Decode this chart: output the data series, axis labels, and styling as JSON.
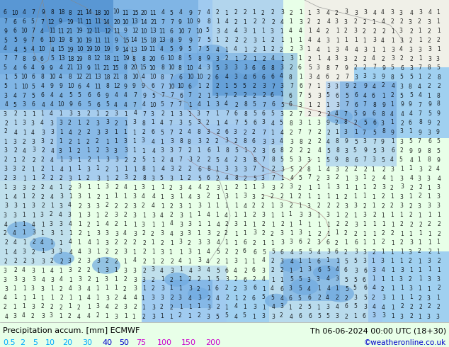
{
  "title_left": "Precipitation accum. [mm] ECMWF",
  "title_right": "Th 06-06-2024 00:00 UTC (18+30)",
  "credit": "©weatheronline.co.uk",
  "legend_values": [
    "0.5",
    "2",
    "5",
    "10",
    "20",
    "30",
    "40",
    "50",
    "75",
    "100",
    "150",
    "200"
  ],
  "legend_text_colors": [
    "#00aaff",
    "#00aaff",
    "#00aaff",
    "#00aaff",
    "#00aaff",
    "#00aaff",
    "#0000cc",
    "#0000cc",
    "#cc00cc",
    "#cc00cc",
    "#cc00cc",
    "#cc00cc"
  ],
  "fig_width": 6.34,
  "fig_height": 4.9,
  "dpi": 100,
  "title_fontsize": 8.0,
  "legend_fontsize": 8.0,
  "credit_fontsize": 7.5,
  "bottom_bg": "#e8ffe8",
  "title_color": "#000000",
  "credit_color": "#0000cc",
  "land_color": "#c8e896",
  "sea_color": "#a0d0f0",
  "precip_light": "#a0c8f0",
  "precip_medium": "#70aae0",
  "precip_dark": "#4488cc",
  "precip_heavy": "#2060b0",
  "num_color": "#000000",
  "num_fontsize": 5.5,
  "border_color": "#996666",
  "border_lw": 0.5,
  "coast_color": "#888888",
  "coast_lw": 0.4,
  "bottom_line_color": "#aaaaaa"
}
